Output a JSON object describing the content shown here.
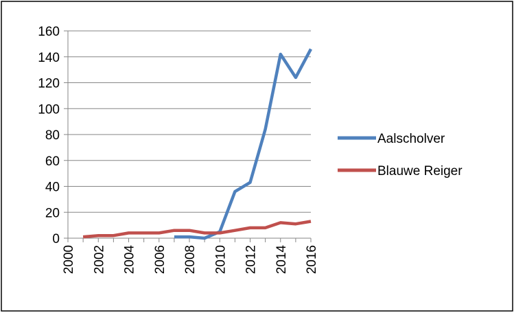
{
  "chart_data": {
    "type": "line",
    "title": "",
    "xlabel": "",
    "ylabel": "",
    "ylim": [
      0,
      160
    ],
    "xlim": [
      2000,
      2016
    ],
    "y_ticks": [
      0,
      20,
      40,
      60,
      80,
      100,
      120,
      140,
      160
    ],
    "x_ticks": [
      2000,
      2002,
      2004,
      2006,
      2008,
      2010,
      2012,
      2014,
      2016
    ],
    "grid": "horizontal",
    "legend_position": "right",
    "series": [
      {
        "name": "Aalscholver",
        "color": "#4F81BD",
        "points": [
          [
            2007,
            1
          ],
          [
            2008,
            1
          ],
          [
            2009,
            0
          ],
          [
            2010,
            5
          ],
          [
            2011,
            36
          ],
          [
            2012,
            43
          ],
          [
            2013,
            84
          ],
          [
            2014,
            142
          ],
          [
            2015,
            124
          ],
          [
            2016,
            146
          ]
        ]
      },
      {
        "name": "Blauwe Reiger",
        "color": "#C0504D",
        "points": [
          [
            2001,
            1
          ],
          [
            2002,
            2
          ],
          [
            2003,
            2
          ],
          [
            2004,
            4
          ],
          [
            2005,
            4
          ],
          [
            2006,
            4
          ],
          [
            2007,
            6
          ],
          [
            2008,
            6
          ],
          [
            2009,
            4
          ],
          [
            2010,
            4
          ],
          [
            2011,
            6
          ],
          [
            2012,
            8
          ],
          [
            2013,
            8
          ],
          [
            2014,
            12
          ],
          [
            2015,
            11
          ],
          [
            2016,
            13
          ]
        ]
      }
    ]
  }
}
